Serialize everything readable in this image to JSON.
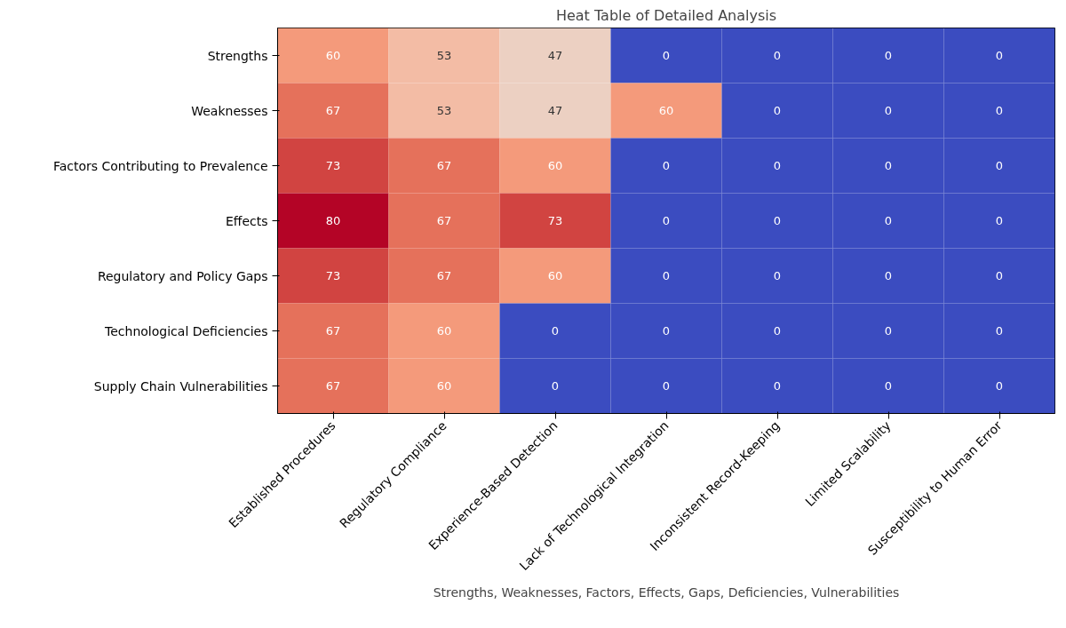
{
  "chart_data": {
    "type": "heatmap",
    "title": "Heat Table of Detailed Analysis",
    "xlabel": "Strengths, Weaknesses, Factors, Effects, Gaps, Deficiencies, Vulnerabilities",
    "categories": [
      "Established Procedures",
      "Regulatory Compliance",
      "Experience-Based Detection",
      "Lack of Technological Integration",
      "Inconsistent Record-Keeping",
      "Limited Scalability",
      "Susceptibility to Human Error"
    ],
    "y_categories": [
      "Strengths",
      "Weaknesses",
      "Factors Contributing to Prevalence",
      "Effects",
      "Regulatory and Policy Gaps",
      "Technological Deficiencies",
      "Supply Chain Vulnerabilities"
    ],
    "cells": [
      [
        60,
        53,
        47,
        0,
        0,
        0,
        0
      ],
      [
        67,
        53,
        47,
        60,
        0,
        0,
        0
      ],
      [
        73,
        67,
        60,
        0,
        0,
        0,
        0
      ],
      [
        80,
        67,
        73,
        0,
        0,
        0,
        0
      ],
      [
        73,
        67,
        60,
        0,
        0,
        0,
        0
      ],
      [
        67,
        60,
        0,
        0,
        0,
        0,
        0
      ],
      [
        67,
        60,
        0,
        0,
        0,
        0,
        0
      ]
    ],
    "data_labels": true
  }
}
